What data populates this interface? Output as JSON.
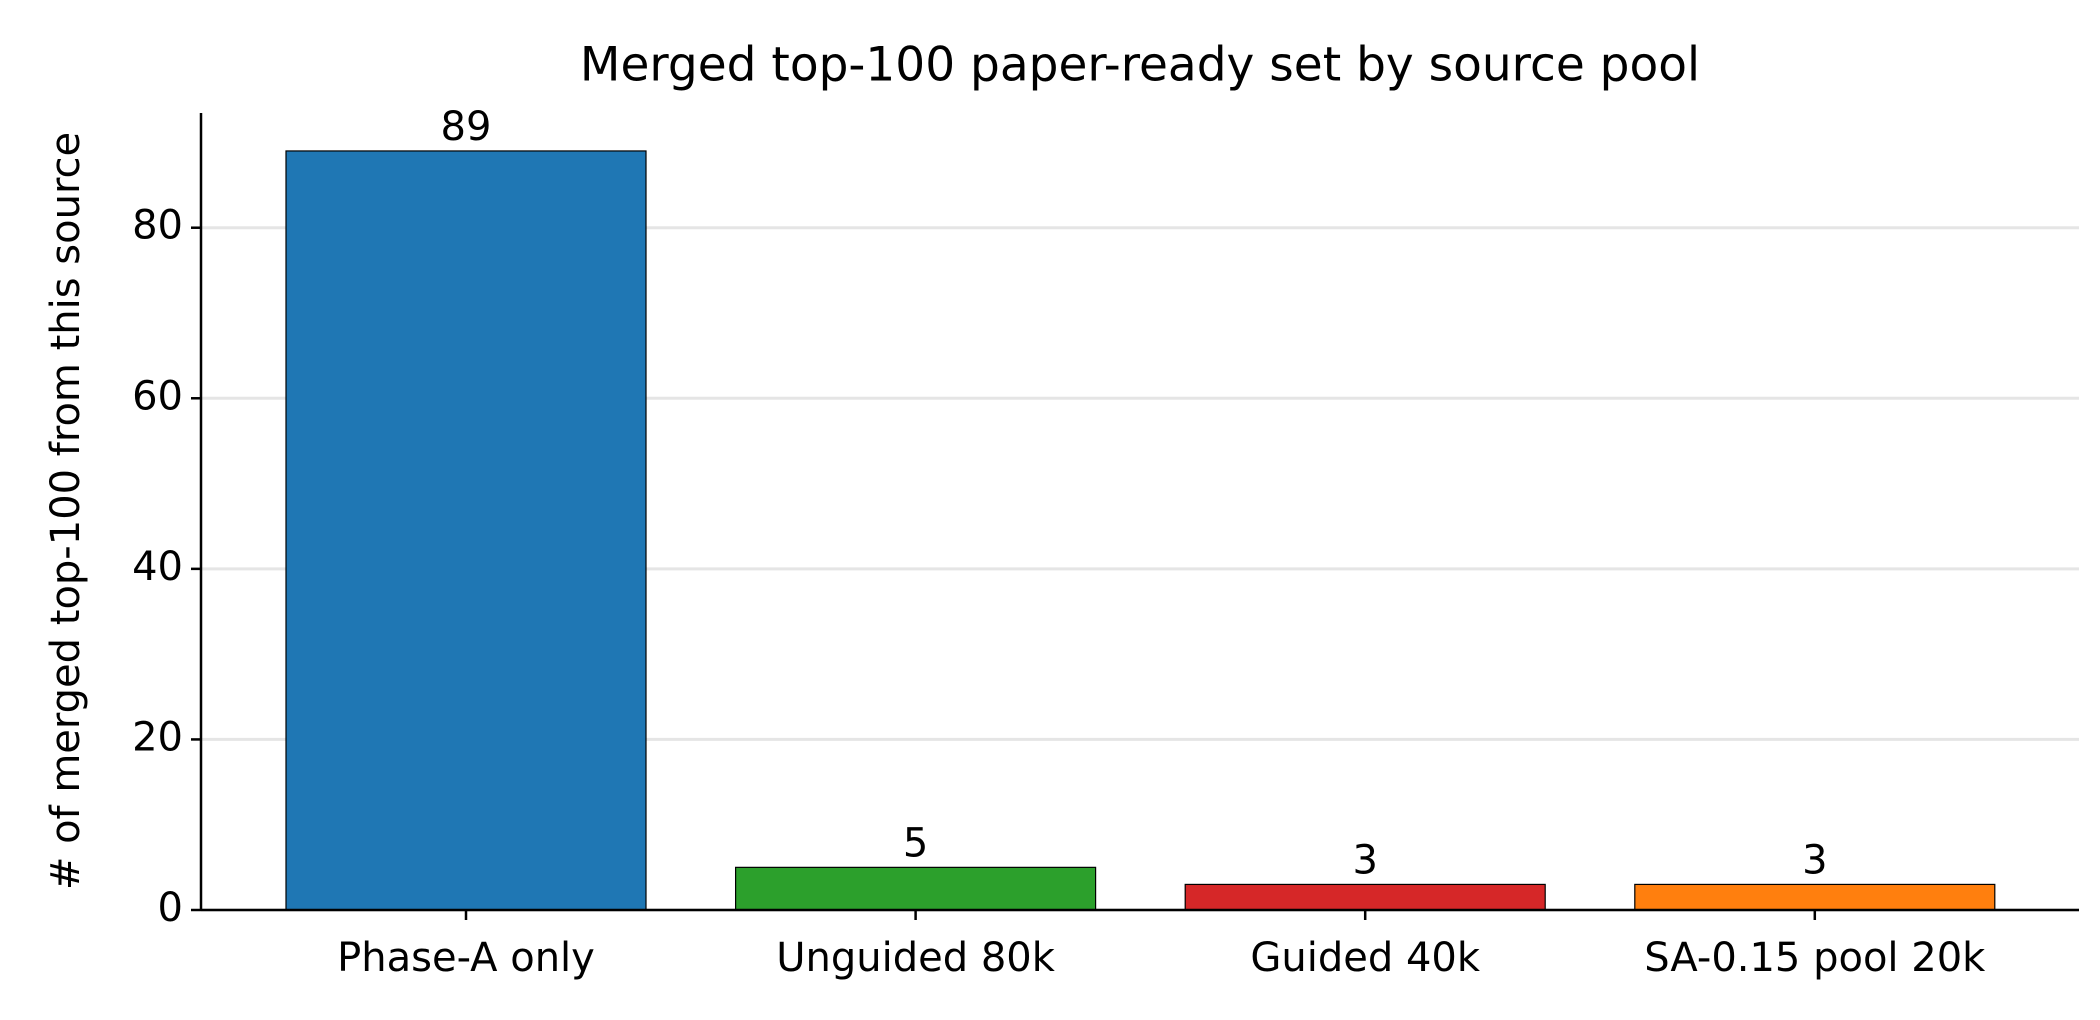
{
  "chart_data": {
    "type": "bar",
    "title": "Merged top-100 paper-ready set by source pool",
    "y_label": "# of merged top-100 from this source",
    "categories": [
      "Phase-A only",
      "Unguided 80k",
      "Guided 40k",
      "SA-0.15 pool 20k"
    ],
    "values": [
      89,
      5,
      3,
      3
    ],
    "colors": [
      "#1f77b4",
      "#2ca02c",
      "#d62728",
      "#ff7f0e"
    ],
    "ylim": [
      0,
      93.45
    ],
    "yticks": [
      0,
      20,
      40,
      60,
      80
    ],
    "grid": true
  }
}
